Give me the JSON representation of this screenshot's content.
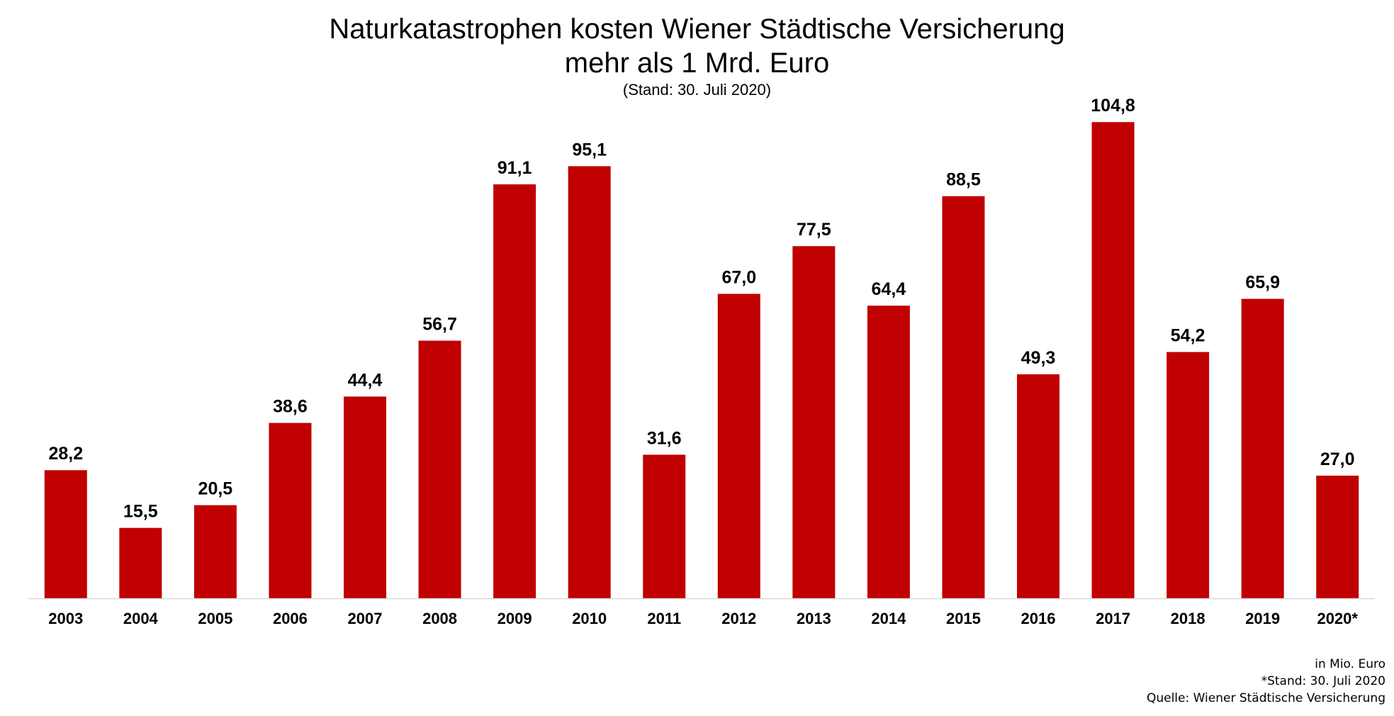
{
  "header": {
    "title_line1": "Naturkatastrophen kosten Wiener Städtische Versicherung",
    "title_line2": "mehr als 1 Mrd. Euro",
    "subtitle": "(Stand: 30. Juli 2020)"
  },
  "footer": {
    "unit_note": "in Mio. Euro",
    "asterisk_note": "*Stand: 30. Juli 2020",
    "source_note": "Quelle: Wiener Städtische Versicherung"
  },
  "colors": {
    "bar": "#c00000",
    "axis": "#d9d9d9",
    "text": "#000000"
  },
  "chart_data": {
    "type": "bar",
    "title": "Naturkatastrophen kosten Wiener Städtische Versicherung mehr als 1 Mrd. Euro",
    "subtitle": "(Stand: 30. Juli 2020)",
    "categories": [
      "2003",
      "2004",
      "2005",
      "2006",
      "2007",
      "2008",
      "2009",
      "2010",
      "2011",
      "2012",
      "2013",
      "2014",
      "2015",
      "2016",
      "2017",
      "2018",
      "2019",
      "2020*"
    ],
    "values": [
      28.2,
      15.5,
      20.5,
      38.6,
      44.4,
      56.7,
      91.1,
      95.1,
      31.6,
      67.0,
      77.5,
      64.4,
      88.5,
      49.3,
      104.8,
      54.2,
      65.9,
      27.0
    ],
    "data_labels": [
      "28,2",
      "15,5",
      "20,5",
      "38,6",
      "44,4",
      "56,7",
      "91,1",
      "95,1",
      "31,6",
      "67,0",
      "77,5",
      "64,4",
      "88,5",
      "49,3",
      "104,8",
      "54,2",
      "65,9",
      "27,0"
    ],
    "ylim": [
      0,
      115
    ],
    "grid": false,
    "y_axis_visible": false
  }
}
